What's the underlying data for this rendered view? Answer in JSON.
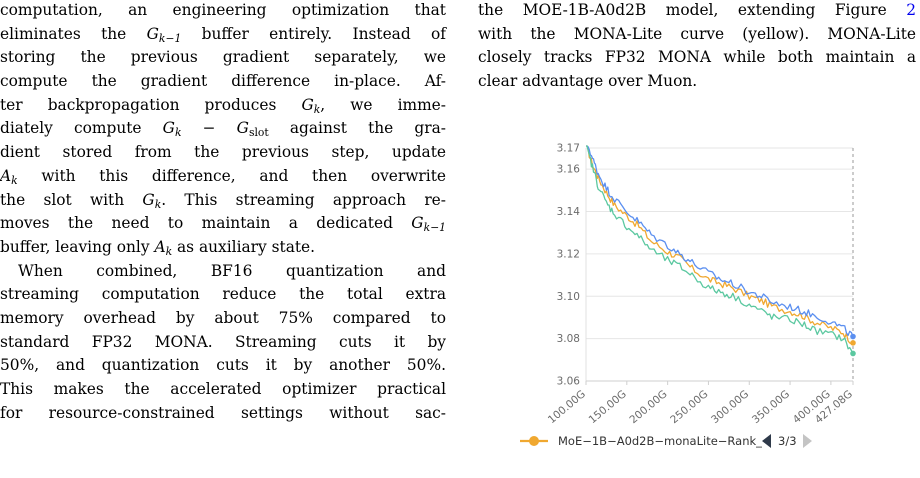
{
  "left_column": {
    "lines": [
      "computation, an engineering optimization that",
      "eliminates the G_{k−1} buffer entirely. Instead of",
      "storing the previous gradient separately, we",
      "compute the gradient difference in-place. Af-",
      "ter backpropagation produces G_k, we imme-",
      "diately compute G_k − G_slot against the gra-",
      "dient stored from the previous step, update",
      "A_k with this difference, and then overwrite",
      "the slot with G_k. This streaming approach re-",
      "moves the need to maintain a dedicated G_{k−1}",
      "buffer, leaving only A_k as auxiliary state.",
      "When combined, BF16 quantization and",
      "streaming computation reduce the total extra",
      "memory overhead by about 75% compared to",
      "standard FP32 MONA. Streaming cuts it by",
      "50%, and quantization cuts it by another 50%.",
      "This makes the accelerated optimizer practical",
      "for resource-constrained settings without sac-"
    ]
  },
  "right_column": {
    "lines": [
      "the MOE-1B-A0d2B model, extending Figure 2",
      "with the MONA-Lite curve (yellow). MONA-Lite",
      "closely tracks FP32 MONA while both maintain a",
      "clear advantage over Muon."
    ],
    "figure_ref": "2"
  },
  "chart_data": {
    "type": "line",
    "x_ticks": [
      "100.00G",
      "150.00G",
      "200.00G",
      "250.00G",
      "300.00G",
      "350.00G",
      "400.00G",
      "427.08G"
    ],
    "x_tick_values": [
      100,
      150,
      200,
      250,
      300,
      350,
      400,
      427.08
    ],
    "y_ticks": [
      "3.06",
      "3.08",
      "3.10",
      "3.12",
      "3.14",
      "3.16",
      "3.17"
    ],
    "y_tick_values": [
      3.06,
      3.08,
      3.1,
      3.12,
      3.14,
      3.16,
      3.17
    ],
    "xlim": [
      100,
      427.08
    ],
    "ylim": [
      3.06,
      3.17
    ],
    "grid": true,
    "series": [
      {
        "name": "MoE-1B-A0d2B-monaLite-Rank_",
        "color": "#f0a830",
        "x": [
          100,
          108,
          115,
          125,
          135,
          150,
          165,
          180,
          200,
          215,
          230,
          250,
          265,
          280,
          300,
          315,
          330,
          350,
          365,
          380,
          400,
          415,
          427.08
        ],
        "y": [
          3.172,
          3.162,
          3.156,
          3.149,
          3.143,
          3.138,
          3.133,
          3.126,
          3.121,
          3.118,
          3.113,
          3.108,
          3.106,
          3.104,
          3.1,
          3.098,
          3.095,
          3.093,
          3.091,
          3.088,
          3.085,
          3.083,
          3.078
        ]
      },
      {
        "color": "#5b8ff0",
        "x": [
          100,
          108,
          115,
          125,
          135,
          150,
          165,
          180,
          200,
          215,
          230,
          250,
          265,
          280,
          300,
          315,
          330,
          350,
          365,
          380,
          400,
          415,
          427.08
        ],
        "y": [
          3.174,
          3.165,
          3.158,
          3.151,
          3.146,
          3.14,
          3.135,
          3.129,
          3.124,
          3.12,
          3.116,
          3.111,
          3.108,
          3.106,
          3.102,
          3.1,
          3.097,
          3.095,
          3.093,
          3.091,
          3.088,
          3.085,
          3.081
        ]
      },
      {
        "color": "#5bc8a0",
        "x": [
          100,
          108,
          115,
          125,
          135,
          150,
          165,
          180,
          200,
          215,
          230,
          250,
          265,
          280,
          300,
          315,
          330,
          350,
          365,
          380,
          400,
          415,
          427.08
        ],
        "y": [
          3.171,
          3.161,
          3.152,
          3.144,
          3.139,
          3.133,
          3.128,
          3.122,
          3.117,
          3.114,
          3.11,
          3.104,
          3.102,
          3.1,
          3.096,
          3.093,
          3.09,
          3.089,
          3.087,
          3.084,
          3.082,
          3.08,
          3.073
        ]
      }
    ],
    "legend": {
      "label": "MoE−1B−A0d2B−monaLite−Rank_",
      "page": "3/3",
      "placement": "bottom"
    }
  }
}
